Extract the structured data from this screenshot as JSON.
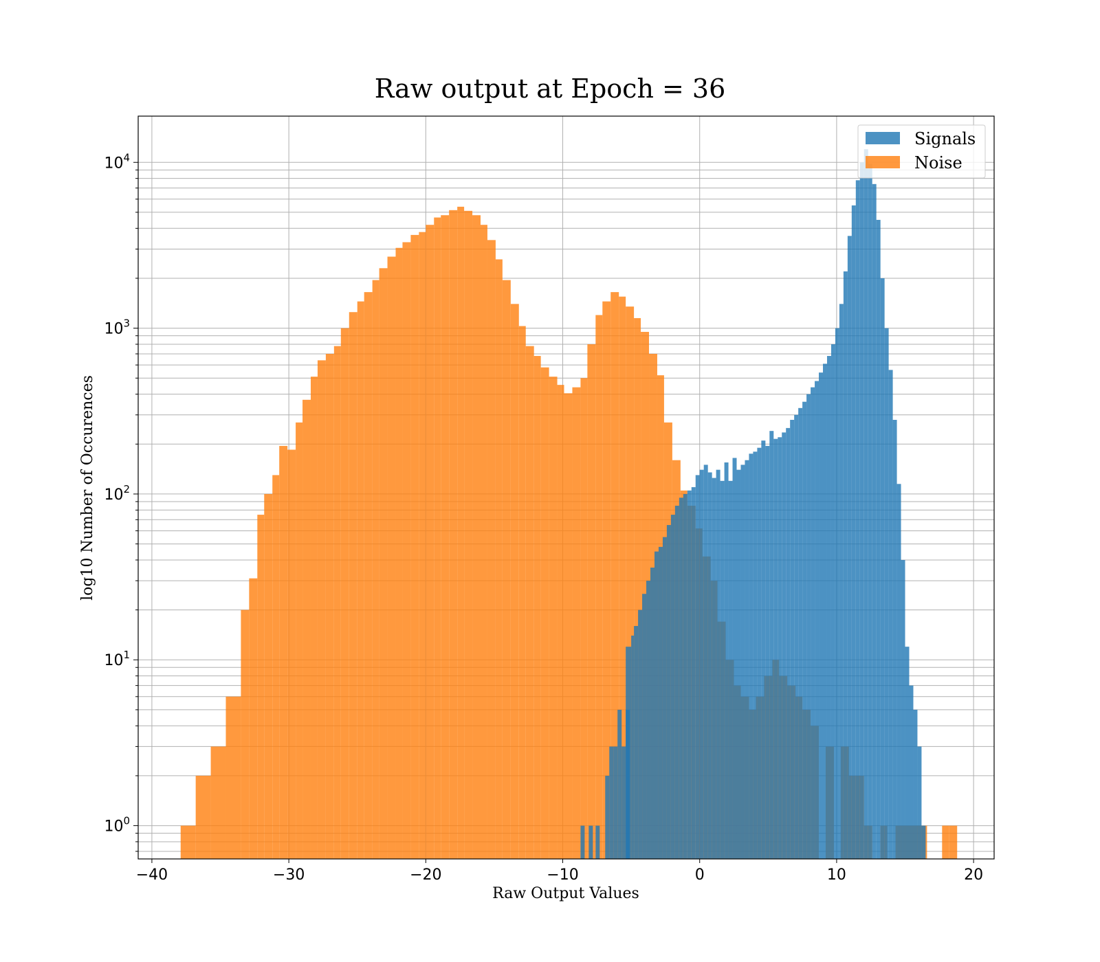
{
  "chart_data": {
    "type": "bar",
    "title": "Raw output at Epoch = 36",
    "xlabel": "Raw Output Values",
    "ylabel": "log10 Number of Occurences",
    "xlim": [
      -41,
      21.5
    ],
    "ylim": [
      0.63,
      19000
    ],
    "yscale": "log",
    "grid": true,
    "legend_position": "top-right",
    "xticks": [
      -40,
      -30,
      -20,
      -10,
      0,
      10,
      20
    ],
    "xtick_labels": [
      "−40",
      "−30",
      "−20",
      "−10",
      "0",
      "10",
      "20"
    ],
    "yticks": [
      1,
      10,
      100,
      1000,
      10000
    ],
    "ytick_labels": [
      {
        "base": "10",
        "exp": "0"
      },
      {
        "base": "10",
        "exp": "1"
      },
      {
        "base": "10",
        "exp": "2"
      },
      {
        "base": "10",
        "exp": "3"
      },
      {
        "base": "10",
        "exp": "4"
      }
    ],
    "colors": {
      "Signals": "#1f77b4",
      "Noise": "#ff7f0e"
    },
    "series": [
      {
        "name": "Noise",
        "opacity": 0.8,
        "bins": [
          [
            -37.9,
            -36.8,
            1
          ],
          [
            -36.8,
            -35.7,
            2
          ],
          [
            -35.7,
            -34.6,
            3
          ],
          [
            -34.6,
            -33.5,
            6
          ],
          [
            -33.5,
            -32.9,
            20
          ],
          [
            -32.9,
            -32.3,
            31
          ],
          [
            -32.3,
            -31.8,
            75
          ],
          [
            -31.8,
            -31.2,
            100
          ],
          [
            -31.2,
            -30.7,
            130
          ],
          [
            -30.7,
            -30.1,
            195
          ],
          [
            -30.1,
            -29.5,
            185
          ],
          [
            -29.5,
            -29.0,
            270
          ],
          [
            -29.0,
            -28.4,
            370
          ],
          [
            -28.4,
            -27.9,
            510
          ],
          [
            -27.9,
            -27.3,
            640
          ],
          [
            -27.3,
            -26.7,
            700
          ],
          [
            -26.7,
            -26.2,
            780
          ],
          [
            -26.2,
            -25.6,
            1000
          ],
          [
            -25.6,
            -25.0,
            1250
          ],
          [
            -25.0,
            -24.5,
            1450
          ],
          [
            -24.5,
            -23.9,
            1650
          ],
          [
            -23.9,
            -23.4,
            1950
          ],
          [
            -23.4,
            -22.8,
            2300
          ],
          [
            -22.8,
            -22.2,
            2700
          ],
          [
            -22.2,
            -21.7,
            3050
          ],
          [
            -21.7,
            -21.1,
            3300
          ],
          [
            -21.1,
            -20.5,
            3650
          ],
          [
            -20.5,
            -20.0,
            3800
          ],
          [
            -20.0,
            -19.4,
            4200
          ],
          [
            -19.4,
            -18.9,
            4650
          ],
          [
            -18.9,
            -18.3,
            4800
          ],
          [
            -18.3,
            -17.7,
            5150
          ],
          [
            -17.7,
            -17.2,
            5400
          ],
          [
            -17.2,
            -16.6,
            5100
          ],
          [
            -16.6,
            -16.0,
            4800
          ],
          [
            -16.0,
            -15.5,
            4200
          ],
          [
            -15.5,
            -14.9,
            3400
          ],
          [
            -14.9,
            -14.4,
            2600
          ],
          [
            -14.4,
            -13.8,
            1950
          ],
          [
            -13.8,
            -13.2,
            1400
          ],
          [
            -13.2,
            -12.7,
            1030
          ],
          [
            -12.7,
            -12.1,
            780
          ],
          [
            -12.1,
            -11.6,
            680
          ],
          [
            -11.6,
            -11.0,
            580
          ],
          [
            -11.0,
            -10.4,
            510
          ],
          [
            -10.4,
            -9.9,
            455
          ],
          [
            -9.9,
            -9.3,
            405
          ],
          [
            -9.3,
            -8.7,
            440
          ],
          [
            -8.7,
            -8.2,
            500
          ],
          [
            -8.2,
            -7.6,
            800
          ],
          [
            -7.6,
            -7.1,
            1200
          ],
          [
            -7.1,
            -6.5,
            1450
          ],
          [
            -6.5,
            -5.9,
            1650
          ],
          [
            -5.9,
            -5.4,
            1550
          ],
          [
            -5.4,
            -4.8,
            1350
          ],
          [
            -4.8,
            -4.3,
            1150
          ],
          [
            -4.3,
            -3.7,
            950
          ],
          [
            -3.7,
            -3.1,
            700
          ],
          [
            -3.1,
            -2.6,
            520
          ],
          [
            -2.6,
            -2.0,
            270
          ],
          [
            -2.0,
            -1.4,
            160
          ],
          [
            -1.4,
            -0.9,
            105
          ],
          [
            -0.9,
            -0.3,
            85
          ],
          [
            -0.3,
            0.2,
            62
          ],
          [
            0.2,
            0.8,
            42
          ],
          [
            0.8,
            1.3,
            30
          ],
          [
            1.3,
            1.9,
            17
          ],
          [
            1.9,
            2.5,
            10
          ],
          [
            2.5,
            3.0,
            7
          ],
          [
            3.0,
            3.6,
            6
          ],
          [
            3.6,
            4.1,
            5
          ],
          [
            4.1,
            4.7,
            6
          ],
          [
            4.7,
            5.3,
            8
          ],
          [
            5.3,
            5.8,
            10
          ],
          [
            5.8,
            6.4,
            8
          ],
          [
            6.4,
            7.0,
            7
          ],
          [
            7.0,
            7.5,
            6
          ],
          [
            7.5,
            8.1,
            5
          ],
          [
            8.1,
            8.7,
            4
          ],
          [
            8.7,
            9.2,
            0
          ],
          [
            9.2,
            9.8,
            3
          ],
          [
            9.8,
            10.3,
            0
          ],
          [
            10.3,
            10.9,
            3
          ],
          [
            10.9,
            11.4,
            2
          ],
          [
            11.4,
            12.0,
            2
          ],
          [
            12.0,
            12.6,
            1
          ],
          [
            12.6,
            13.2,
            0
          ],
          [
            13.2,
            13.7,
            1
          ],
          [
            13.7,
            14.3,
            0
          ],
          [
            14.3,
            14.8,
            1
          ],
          [
            14.8,
            15.4,
            1
          ],
          [
            15.4,
            16.0,
            1
          ],
          [
            16.0,
            16.6,
            1
          ],
          [
            16.6,
            17.1,
            0
          ],
          [
            17.1,
            17.7,
            0
          ],
          [
            17.7,
            18.2,
            1
          ],
          [
            18.2,
            18.8,
            1
          ]
        ]
      },
      {
        "name": "Signals",
        "opacity": 0.8,
        "bins": [
          [
            -8.7,
            -8.4,
            1
          ],
          [
            -8.1,
            -7.8,
            1
          ],
          [
            -7.6,
            -7.3,
            1
          ],
          [
            -6.9,
            -6.6,
            2
          ],
          [
            -6.6,
            -6.3,
            3
          ],
          [
            -6.3,
            -6.0,
            3
          ],
          [
            -6.0,
            -5.7,
            5
          ],
          [
            -5.7,
            -5.4,
            3
          ],
          [
            -5.4,
            -5.1,
            5
          ],
          [
            -5.4,
            -5.0,
            12
          ],
          [
            -5.0,
            -4.8,
            14
          ],
          [
            -4.8,
            -4.5,
            16
          ],
          [
            -4.5,
            -4.2,
            20
          ],
          [
            -4.2,
            -3.9,
            25
          ],
          [
            -3.9,
            -3.6,
            30
          ],
          [
            -3.6,
            -3.3,
            36
          ],
          [
            -3.3,
            -3.0,
            45
          ],
          [
            -3.0,
            -2.7,
            48
          ],
          [
            -2.7,
            -2.4,
            55
          ],
          [
            -2.4,
            -2.1,
            65
          ],
          [
            -2.1,
            -1.8,
            75
          ],
          [
            -1.8,
            -1.5,
            85
          ],
          [
            -1.5,
            -1.2,
            95
          ],
          [
            -1.2,
            -0.9,
            100
          ],
          [
            -0.9,
            -0.6,
            105
          ],
          [
            -0.6,
            -0.3,
            110
          ],
          [
            -0.3,
            0.0,
            130
          ],
          [
            0.0,
            0.3,
            140
          ],
          [
            0.3,
            0.6,
            150
          ],
          [
            0.6,
            0.9,
            135
          ],
          [
            0.9,
            1.2,
            125
          ],
          [
            1.2,
            1.5,
            140
          ],
          [
            1.5,
            1.8,
            120
          ],
          [
            1.8,
            2.1,
            155
          ],
          [
            2.1,
            2.4,
            120
          ],
          [
            2.4,
            2.7,
            165
          ],
          [
            2.7,
            3.0,
            140
          ],
          [
            3.0,
            3.3,
            150
          ],
          [
            3.3,
            3.6,
            160
          ],
          [
            3.6,
            3.9,
            175
          ],
          [
            3.9,
            4.2,
            180
          ],
          [
            4.2,
            4.5,
            190
          ],
          [
            4.5,
            4.8,
            210
          ],
          [
            4.8,
            5.1,
            195
          ],
          [
            5.1,
            5.4,
            240
          ],
          [
            5.4,
            5.7,
            215
          ],
          [
            5.7,
            6.0,
            220
          ],
          [
            6.0,
            6.3,
            235
          ],
          [
            6.3,
            6.6,
            250
          ],
          [
            6.6,
            6.9,
            280
          ],
          [
            6.9,
            7.2,
            300
          ],
          [
            7.2,
            7.5,
            330
          ],
          [
            7.5,
            7.8,
            360
          ],
          [
            7.8,
            8.1,
            400
          ],
          [
            8.1,
            8.4,
            440
          ],
          [
            8.4,
            8.7,
            480
          ],
          [
            8.7,
            9.0,
            540
          ],
          [
            9.0,
            9.3,
            610
          ],
          [
            9.3,
            9.6,
            680
          ],
          [
            9.6,
            9.9,
            800
          ],
          [
            9.9,
            10.2,
            1000
          ],
          [
            10.2,
            10.5,
            1400
          ],
          [
            10.5,
            10.8,
            2200
          ],
          [
            10.8,
            11.1,
            3600
          ],
          [
            11.1,
            11.4,
            5500
          ],
          [
            11.4,
            11.7,
            7800
          ],
          [
            11.7,
            12.0,
            10000
          ],
          [
            12.0,
            12.3,
            12000
          ],
          [
            12.3,
            12.6,
            9800
          ],
          [
            12.6,
            12.9,
            7400
          ],
          [
            12.9,
            13.2,
            4500
          ],
          [
            13.2,
            13.5,
            2000
          ],
          [
            13.5,
            13.8,
            1000
          ],
          [
            13.8,
            14.1,
            560
          ],
          [
            14.1,
            14.4,
            280
          ],
          [
            14.4,
            14.7,
            115
          ],
          [
            14.7,
            15.0,
            40
          ],
          [
            15.0,
            15.3,
            12
          ],
          [
            15.3,
            15.6,
            7
          ],
          [
            15.6,
            15.9,
            5
          ],
          [
            15.9,
            16.2,
            3
          ],
          [
            16.2,
            16.5,
            1
          ]
        ]
      }
    ]
  }
}
